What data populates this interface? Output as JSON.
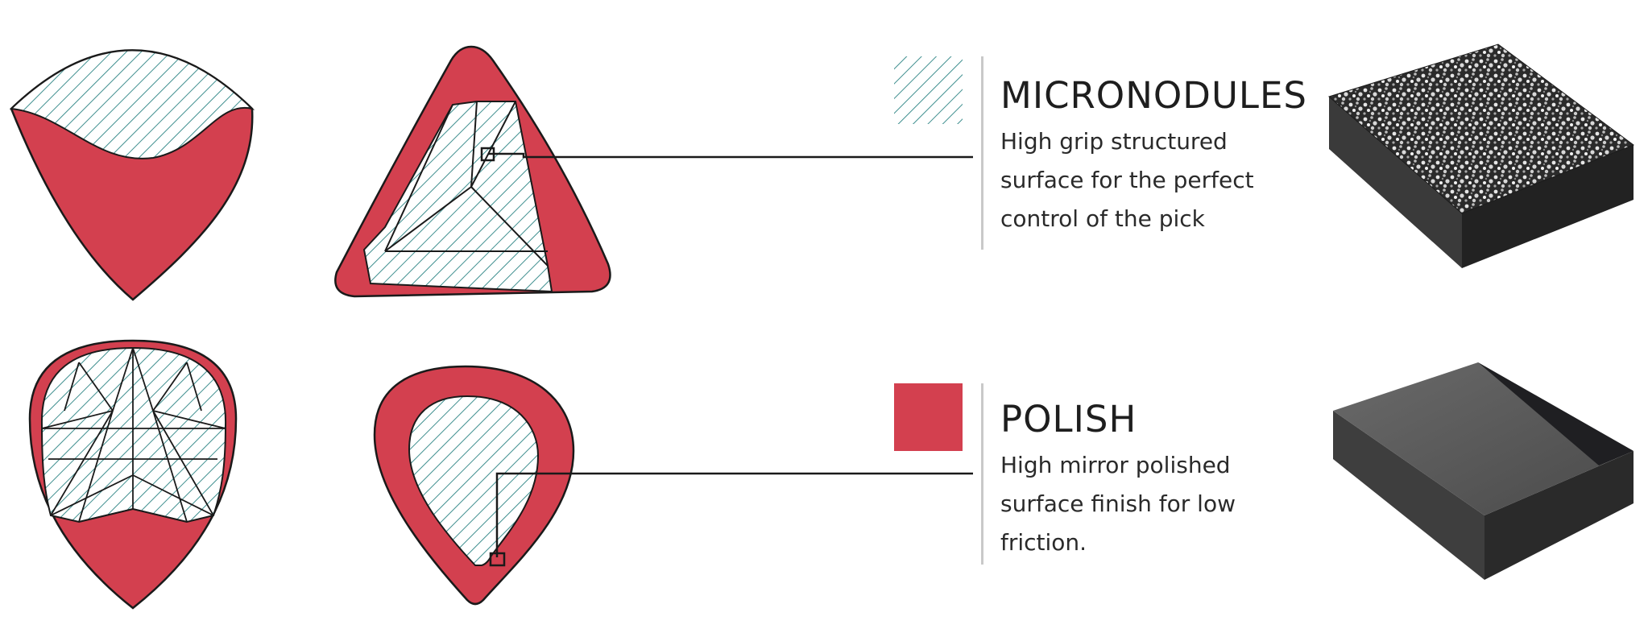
{
  "colors": {
    "red": "#d3404f",
    "hatch": "#3f8f8f",
    "outline": "#1a1a1a",
    "divider": "#c9c9c9"
  },
  "legend": [
    {
      "title": "MICRONODULES",
      "description_lines": [
        "High grip structured",
        "surface for the perfect",
        "control of the pick"
      ]
    },
    {
      "title": "POLISH",
      "description_lines": [
        "High mirror polished",
        "surface finish for low",
        "friction."
      ]
    }
  ]
}
